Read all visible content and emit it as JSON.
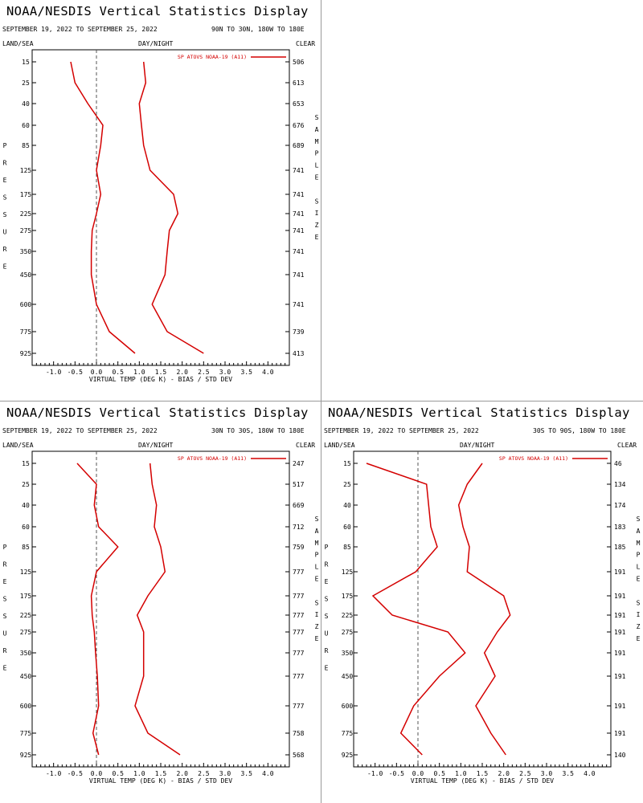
{
  "common": {
    "title": "NOAA/NESDIS Vertical Statistics Display",
    "date_range": "SEPTEMBER 19, 2022 TO SEPTEMBER 25, 2022",
    "left_label": "LAND/SEA",
    "center_label": "DAY/NIGHT",
    "right_label": "CLEAR",
    "legend": "SP ATOVS NOAA-19 (A11)",
    "xlabel": "VIRTUAL TEMP (DEG K) - BIAS / STD DEV",
    "ylabel": "PRESSURE",
    "y2label": "SAMPLE SIZE",
    "line_color": "#d40000"
  },
  "chart_data": [
    {
      "type": "line",
      "region": "90N TO 30N, 180W TO 180E",
      "xlim": [
        -1.5,
        4.5
      ],
      "x_ticks": [
        "-1.0",
        "-0.5",
        "0.0",
        "0.5",
        "1.0",
        "1.5",
        "2.0",
        "2.5",
        "3.0",
        "3.5",
        "4.0"
      ],
      "pressure_levels": [
        "15",
        "25",
        "40",
        "60",
        "85",
        "125",
        "175",
        "225",
        "275",
        "350",
        "450",
        "600",
        "775",
        "925"
      ],
      "sample_size": [
        "506",
        "613",
        "653",
        "676",
        "689",
        "741",
        "741",
        "741",
        "741",
        "741",
        "741",
        "741",
        "739",
        "413"
      ],
      "series": [
        {
          "values": [
            -0.6,
            -0.5,
            -0.2,
            0.15,
            0.1,
            0.0,
            0.1,
            0.0,
            -0.1,
            -0.12,
            -0.12,
            0.0,
            0.3,
            0.9
          ]
        },
        {
          "values": [
            1.1,
            1.15,
            1.0,
            1.05,
            1.1,
            1.25,
            1.8,
            1.9,
            1.7,
            1.65,
            1.6,
            1.3,
            1.65,
            2.5
          ]
        }
      ]
    },
    {
      "type": "line",
      "region": "30N TO 30S, 180W TO 180E",
      "xlim": [
        -1.5,
        4.5
      ],
      "x_ticks": [
        "-1.0",
        "-0.5",
        "0.0",
        "0.5",
        "1.0",
        "1.5",
        "2.0",
        "2.5",
        "3.0",
        "3.5",
        "4.0"
      ],
      "pressure_levels": [
        "15",
        "25",
        "40",
        "60",
        "85",
        "125",
        "175",
        "225",
        "275",
        "350",
        "450",
        "600",
        "775",
        "925"
      ],
      "sample_size": [
        "247",
        "517",
        "669",
        "712",
        "759",
        "777",
        "777",
        "777",
        "777",
        "777",
        "777",
        "777",
        "758",
        "568"
      ],
      "series": [
        {
          "values": [
            -0.45,
            0.0,
            -0.05,
            0.05,
            0.5,
            0.0,
            -0.12,
            -0.1,
            -0.05,
            -0.02,
            0.02,
            0.05,
            -0.08,
            0.05
          ]
        },
        {
          "values": [
            1.25,
            1.3,
            1.4,
            1.35,
            1.5,
            1.6,
            1.2,
            0.95,
            1.1,
            1.1,
            1.1,
            0.9,
            1.2,
            1.95
          ]
        }
      ]
    },
    {
      "type": "line",
      "region": "30S TO 90S, 180W TO 180E",
      "xlim": [
        -1.5,
        4.5
      ],
      "x_ticks": [
        "-1.0",
        "-0.5",
        "0.0",
        "0.5",
        "1.0",
        "1.5",
        "2.0",
        "2.5",
        "3.0",
        "3.5",
        "4.0"
      ],
      "pressure_levels": [
        "15",
        "25",
        "40",
        "60",
        "85",
        "125",
        "175",
        "225",
        "275",
        "350",
        "450",
        "600",
        "775",
        "925"
      ],
      "sample_size": [
        "46",
        "134",
        "174",
        "183",
        "185",
        "191",
        "191",
        "191",
        "191",
        "191",
        "191",
        "191",
        "191",
        "140"
      ],
      "series": [
        {
          "values": [
            -1.2,
            0.2,
            0.25,
            0.3,
            0.45,
            -0.05,
            -1.05,
            -0.6,
            0.7,
            1.1,
            0.5,
            -0.1,
            -0.4,
            0.1
          ]
        },
        {
          "values": [
            1.5,
            1.15,
            0.95,
            1.05,
            1.2,
            1.15,
            2.0,
            2.15,
            1.85,
            1.55,
            1.8,
            1.35,
            1.7,
            2.05
          ]
        }
      ]
    }
  ]
}
